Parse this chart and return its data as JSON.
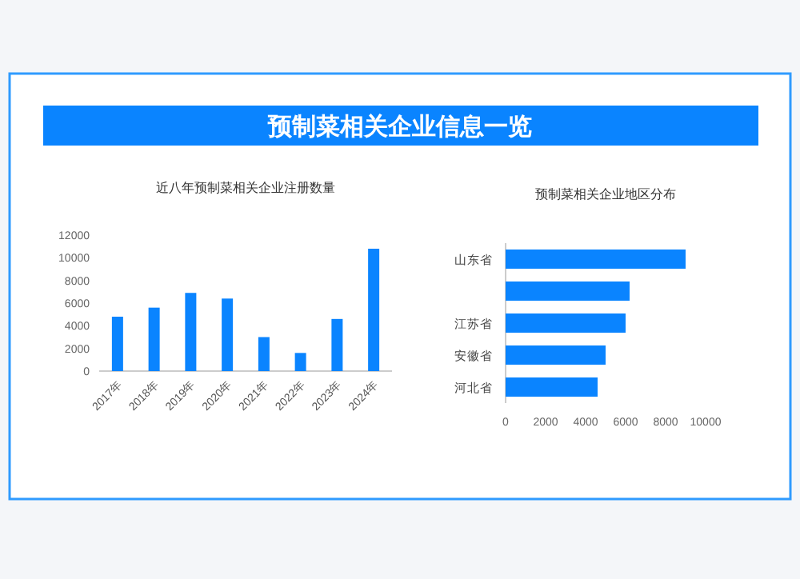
{
  "chart_data": [
    {
      "type": "other",
      "title": "预制菜相关企业信息一览"
    },
    {
      "type": "bar",
      "title": "近八年预制菜相关企业注册数量",
      "categories": [
        "2017年",
        "2018年",
        "2019年",
        "2020年",
        "2021年",
        "2022年",
        "2023年",
        "2024年"
      ],
      "values": [
        4800,
        5600,
        6900,
        6400,
        3000,
        1600,
        4600,
        10800
      ],
      "color": "#0a84ff",
      "ylim": [
        0,
        12000
      ],
      "yticks": [
        0,
        2000,
        4000,
        6000,
        8000,
        10000,
        12000
      ]
    },
    {
      "type": "bar",
      "orientation": "horizontal",
      "title": "预制菜相关企业地区分布",
      "categories": [
        "山东省",
        null,
        "江苏省",
        "安徽省",
        "河北省"
      ],
      "values": [
        9000,
        6200,
        6000,
        5000,
        4600
      ],
      "color": "#0a84ff",
      "xlim": [
        0,
        10000
      ],
      "xticks": [
        0,
        2000,
        4000,
        6000,
        8000,
        10000
      ]
    }
  ]
}
